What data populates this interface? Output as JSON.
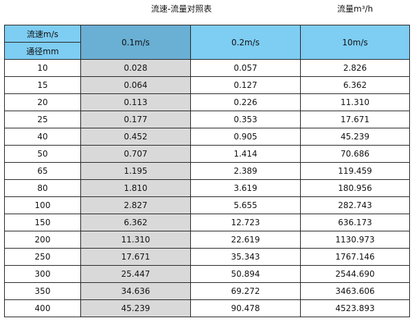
{
  "title": "流速-流量对照表",
  "unit_label": "流量m³/h",
  "colors": {
    "header": "#7ecdf3",
    "header_selected": "#6aafd4",
    "highlight_column": "#d9d9d9"
  },
  "header": {
    "velocity_label": "流速m/s",
    "diameter_label": "通径mm",
    "columns": [
      "0.1m/s",
      "0.2m/s",
      "10m/s"
    ]
  },
  "rows": [
    [
      "10",
      "0.028",
      "0.057",
      "2.826"
    ],
    [
      "15",
      "0.064",
      "0.127",
      "6.362"
    ],
    [
      "20",
      "0.113",
      "0.226",
      "11.310"
    ],
    [
      "25",
      "0.177",
      "0.353",
      "17.671"
    ],
    [
      "40",
      "0.452",
      "0.905",
      "45.239"
    ],
    [
      "50",
      "0.707",
      "1.414",
      "70.686"
    ],
    [
      "65",
      "1.195",
      "2.389",
      "119.459"
    ],
    [
      "80",
      "1.810",
      "3.619",
      "180.956"
    ],
    [
      "100",
      "2.827",
      "5.655",
      "282.743"
    ],
    [
      "150",
      "6.362",
      "12.723",
      "636.173"
    ],
    [
      "200",
      "11.310",
      "22.619",
      "1130.973"
    ],
    [
      "250",
      "17.671",
      "35.343",
      "1767.146"
    ],
    [
      "300",
      "25.447",
      "50.894",
      "2544.690"
    ],
    [
      "350",
      "34.636",
      "69.272",
      "3463.606"
    ],
    [
      "400",
      "45.239",
      "90.478",
      "4523.893"
    ]
  ]
}
